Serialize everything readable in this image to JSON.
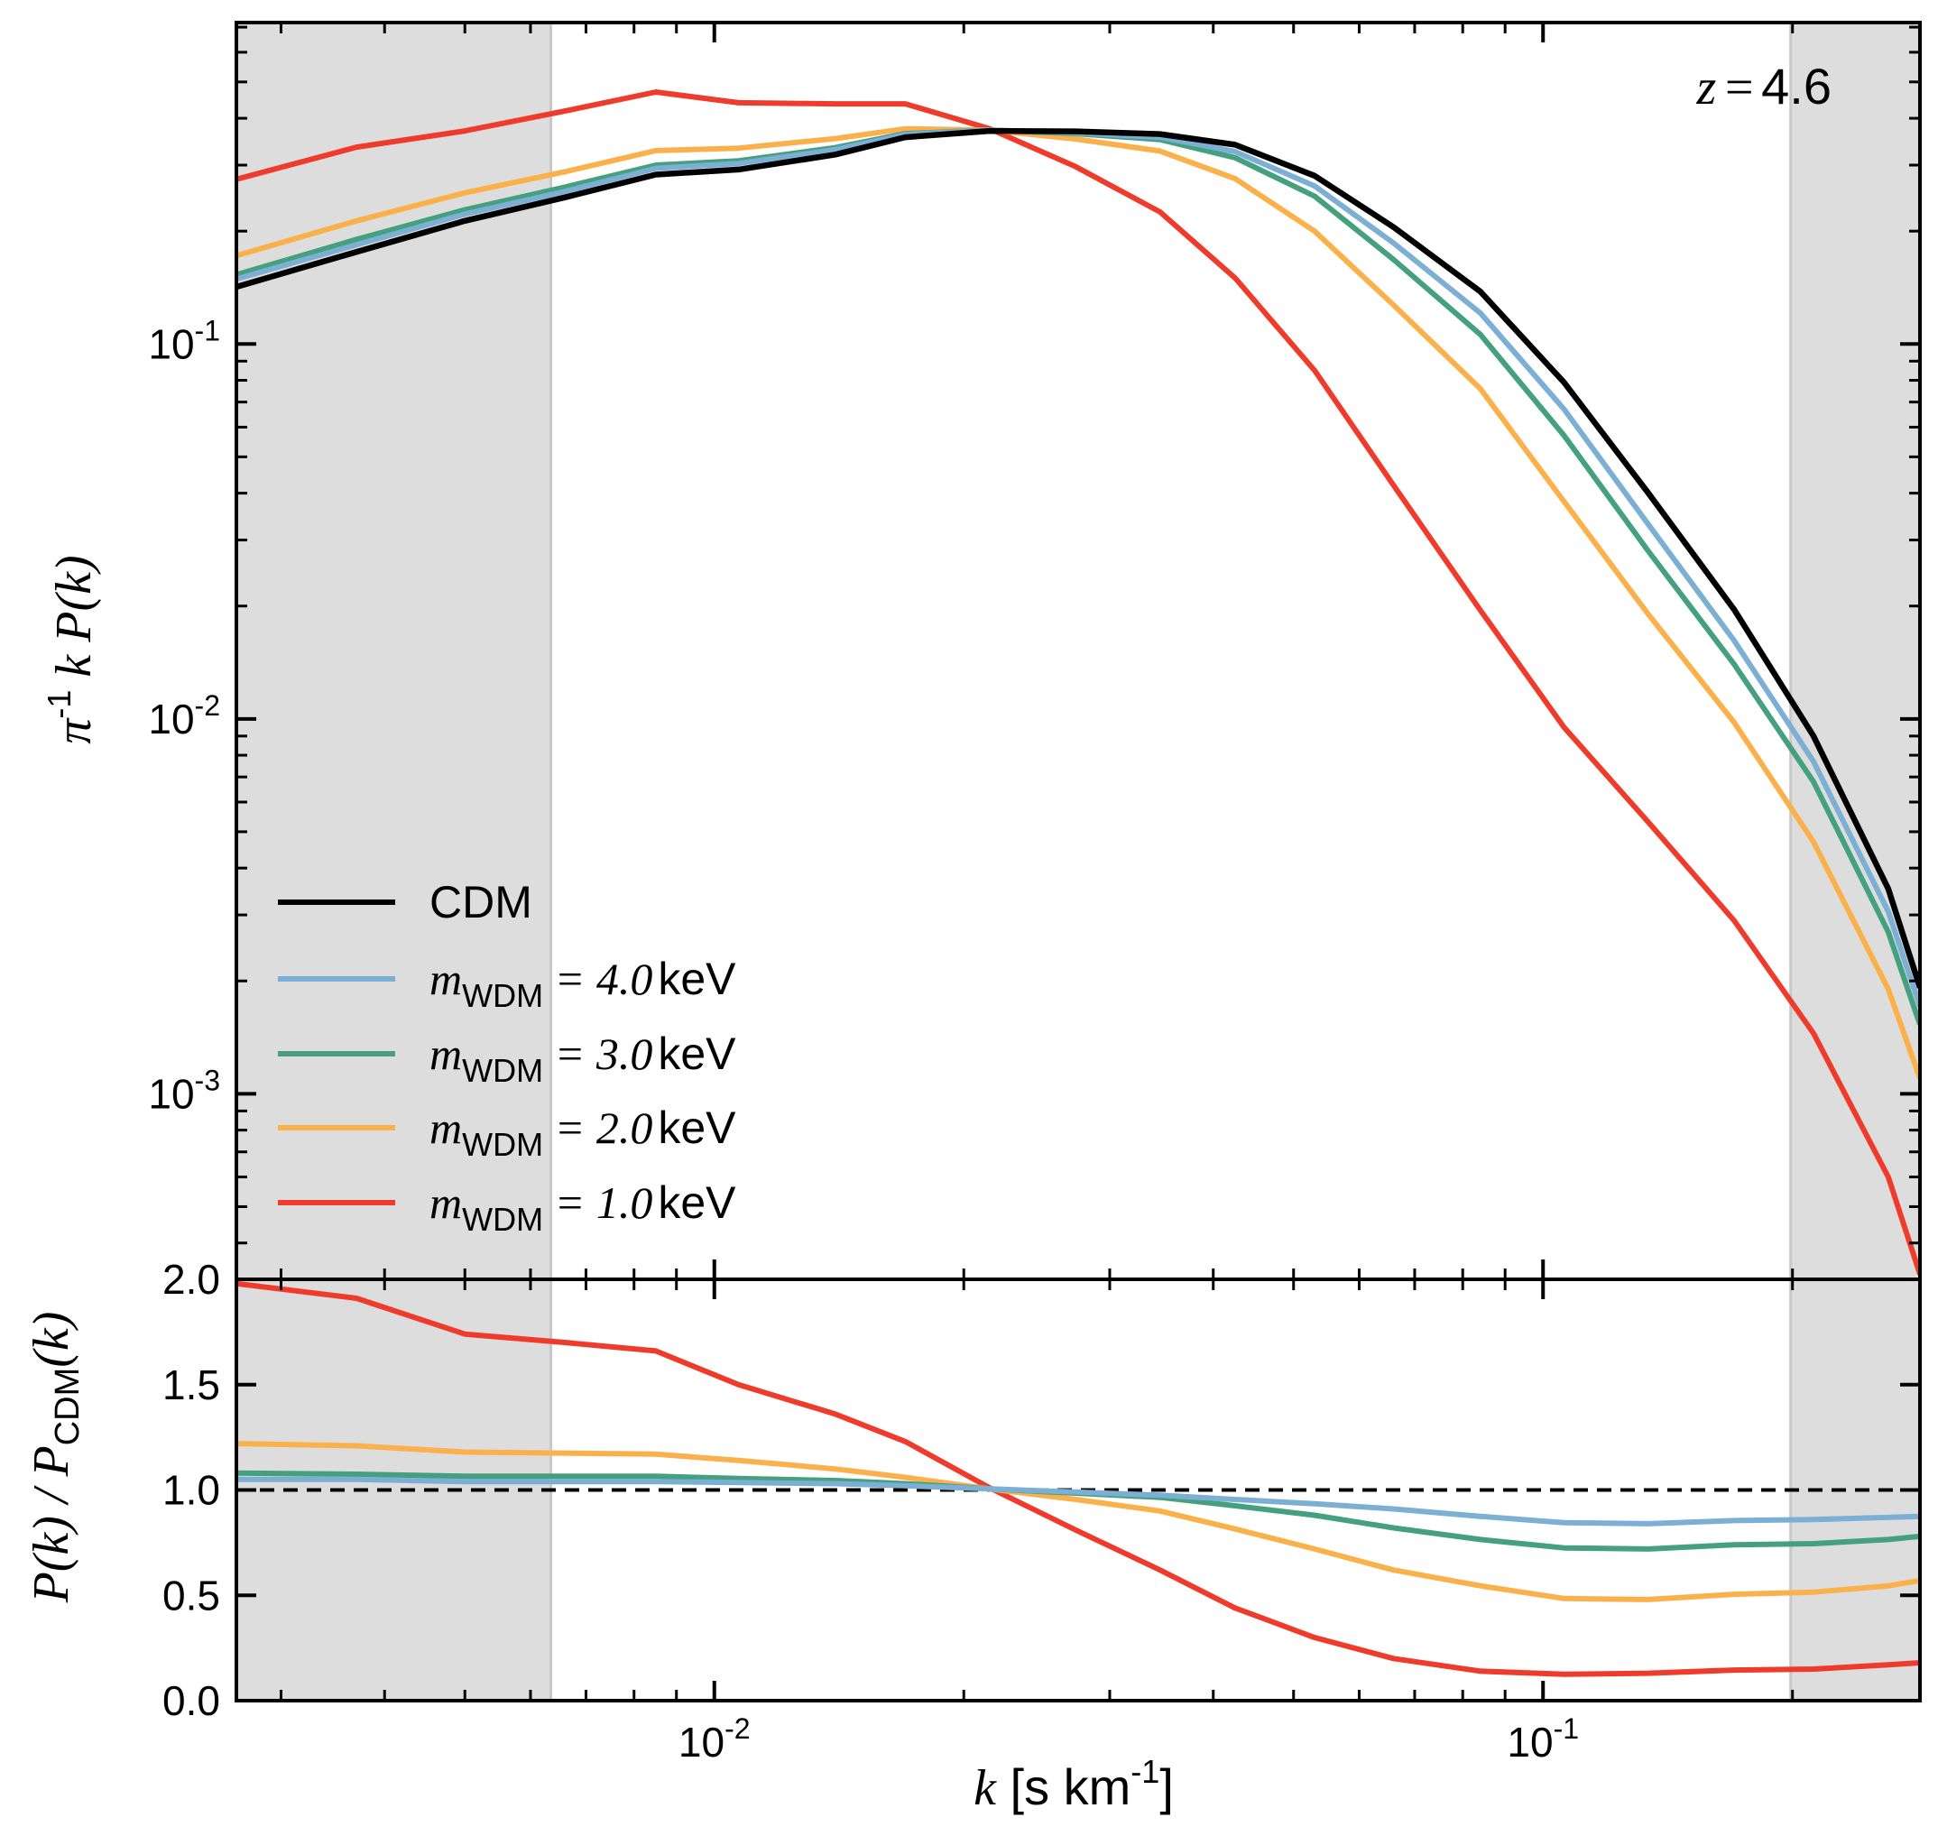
{
  "colors": {
    "cdm": "#000000",
    "m4": "#7bafd4",
    "m3": "#44a07e",
    "m2": "#fbb14b",
    "m1": "#ef3b2c",
    "shade": "#dddddd"
  },
  "chart_data": [
    {
      "type": "line",
      "panel": "top",
      "annotation": {
        "z": "z",
        "eq": "=",
        "value": "4.6"
      },
      "ylabel": {
        "pi": "π",
        "sup": "-1",
        "rest": " k P(k)"
      },
      "xscale": "log",
      "yscale": "log",
      "xlim": [
        0.00265,
        0.285
      ],
      "ylim": [
        0.00032,
        0.72
      ],
      "yticks": [
        {
          "value": 0.1,
          "base": "10",
          "exp": "-1"
        },
        {
          "value": 0.01,
          "base": "10",
          "exp": "-2"
        },
        {
          "value": 0.001,
          "base": "10",
          "exp": "-3"
        }
      ],
      "shaded_regions": [
        [
          0.00265,
          0.00635
        ],
        [
          0.199,
          0.285
        ]
      ],
      "legend": {
        "location": "lower left",
        "entries": [
          {
            "key": "cdm",
            "plain": "CDM"
          },
          {
            "key": "m4",
            "m": "m",
            "sub": "WDM",
            "eq": " = ",
            "num": "4.0",
            "unit": "keV"
          },
          {
            "key": "m3",
            "m": "m",
            "sub": "WDM",
            "eq": " = ",
            "num": "3.0",
            "unit": "keV"
          },
          {
            "key": "m2",
            "m": "m",
            "sub": "WDM",
            "eq": " = ",
            "num": "2.0",
            "unit": "keV"
          },
          {
            "key": "m1",
            "m": "m",
            "sub": "WDM",
            "eq": " = ",
            "num": "1.0",
            "unit": "keV"
          }
        ]
      },
      "x": [
        0.00265,
        0.0037,
        0.005,
        0.0066,
        0.0085,
        0.0107,
        0.014,
        0.017,
        0.0215,
        0.0273,
        0.0345,
        0.0425,
        0.053,
        0.066,
        0.084,
        0.106,
        0.134,
        0.17,
        0.212,
        0.261,
        0.285
      ],
      "series": [
        {
          "key": "cdm",
          "name": "CDM",
          "values": [
            0.142,
            0.176,
            0.213,
            0.246,
            0.283,
            0.292,
            0.32,
            0.356,
            0.37,
            0.369,
            0.363,
            0.34,
            0.281,
            0.205,
            0.138,
            0.079,
            0.04,
            0.0196,
            0.009,
            0.00352,
            0.00192
          ]
        },
        {
          "key": "m4",
          "name": "m_WDM = 4.0 keV",
          "values": [
            0.149,
            0.184,
            0.222,
            0.255,
            0.294,
            0.303,
            0.33,
            0.362,
            0.372,
            0.366,
            0.356,
            0.326,
            0.264,
            0.186,
            0.121,
            0.067,
            0.033,
            0.0162,
            0.0077,
            0.00306,
            0.00171
          ]
        },
        {
          "key": "m3",
          "name": "m_WDM = 3.0 keV",
          "values": [
            0.153,
            0.19,
            0.228,
            0.262,
            0.3,
            0.308,
            0.334,
            0.364,
            0.372,
            0.364,
            0.351,
            0.314,
            0.248,
            0.168,
            0.106,
            0.057,
            0.028,
            0.014,
            0.0068,
            0.0027,
            0.00153
          ]
        },
        {
          "key": "m2",
          "name": "m_WDM = 2.0 keV",
          "values": [
            0.172,
            0.213,
            0.253,
            0.288,
            0.328,
            0.333,
            0.353,
            0.375,
            0.372,
            0.352,
            0.327,
            0.276,
            0.2,
            0.127,
            0.076,
            0.038,
            0.019,
            0.0098,
            0.0047,
            0.0019,
            0.0011
          ]
        },
        {
          "key": "m1",
          "name": "m_WDM = 1.0 keV",
          "values": [
            0.275,
            0.335,
            0.37,
            0.418,
            0.47,
            0.44,
            0.437,
            0.437,
            0.375,
            0.297,
            0.225,
            0.15,
            0.085,
            0.042,
            0.0195,
            0.0095,
            0.0053,
            0.0029,
            0.00145,
            0.0006,
            0.00033
          ]
        }
      ]
    },
    {
      "type": "line",
      "panel": "bottom",
      "xlabel": {
        "k": "k",
        "units": "  [s km",
        "sup": "-1",
        "close": "]"
      },
      "ylabel": {
        "num": "P(k)",
        "slash": " / ",
        "den": "P",
        "sub": "CDM",
        "tail": "(k)"
      },
      "xscale": "log",
      "yscale": "linear",
      "xlim": [
        0.00265,
        0.285
      ],
      "ylim": [
        0.0,
        2.0
      ],
      "yticks": [
        "0.0",
        "0.5",
        "1.0",
        "1.5",
        "2.0"
      ],
      "xticks": [
        {
          "value": 0.01,
          "base": "10",
          "exp": "-2"
        },
        {
          "value": 0.1,
          "base": "10",
          "exp": "-1"
        }
      ],
      "reference_line": {
        "y": 1.0,
        "style": "dashed",
        "color": "#000000"
      },
      "shaded_regions": [
        [
          0.00265,
          0.00635
        ],
        [
          0.199,
          0.285
        ]
      ],
      "x": [
        0.00265,
        0.0037,
        0.005,
        0.0066,
        0.0085,
        0.0107,
        0.014,
        0.017,
        0.0215,
        0.0273,
        0.0345,
        0.0425,
        0.053,
        0.066,
        0.084,
        0.106,
        0.134,
        0.17,
        0.212,
        0.261,
        0.285
      ],
      "series": [
        {
          "key": "m4",
          "name": "m_WDM = 4.0 keV",
          "values": [
            1.05,
            1.05,
            1.04,
            1.04,
            1.04,
            1.035,
            1.03,
            1.02,
            1.005,
            0.99,
            0.975,
            0.955,
            0.935,
            0.91,
            0.875,
            0.845,
            0.84,
            0.855,
            0.86,
            0.87,
            0.875
          ]
        },
        {
          "key": "m3",
          "name": "m_WDM = 3.0 keV",
          "values": [
            1.08,
            1.075,
            1.065,
            1.065,
            1.065,
            1.055,
            1.045,
            1.03,
            1.005,
            0.985,
            0.965,
            0.925,
            0.88,
            0.82,
            0.765,
            0.725,
            0.72,
            0.74,
            0.745,
            0.765,
            0.78
          ]
        },
        {
          "key": "m2",
          "name": "m_WDM = 2.0 keV",
          "values": [
            1.22,
            1.21,
            1.18,
            1.175,
            1.17,
            1.14,
            1.1,
            1.06,
            1.005,
            0.955,
            0.9,
            0.815,
            0.72,
            0.62,
            0.545,
            0.485,
            0.48,
            0.505,
            0.515,
            0.545,
            0.57
          ]
        },
        {
          "key": "m1",
          "name": "m_WDM = 1.0 keV",
          "values": [
            1.98,
            1.91,
            1.74,
            1.7,
            1.66,
            1.5,
            1.36,
            1.23,
            1.01,
            0.81,
            0.62,
            0.44,
            0.3,
            0.2,
            0.14,
            0.125,
            0.13,
            0.145,
            0.15,
            0.17,
            0.18
          ]
        }
      ]
    }
  ]
}
